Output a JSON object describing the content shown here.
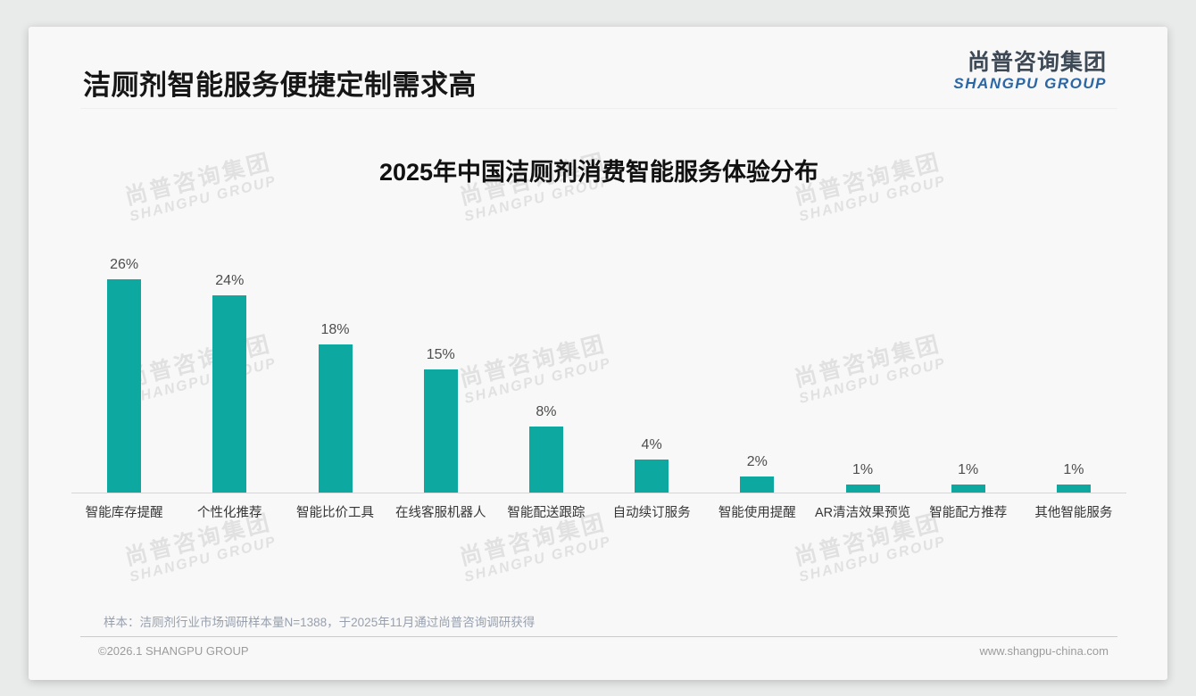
{
  "page": {
    "slide_title": "洁厕剂智能服务便捷定制需求高",
    "logo": {
      "cn": "尚普咨询集团",
      "en": "SHANGPU GROUP"
    },
    "watermark": {
      "cn": "尚普咨询集团",
      "en": "SHANGPU GROUP"
    },
    "footnote": "样本：洁厕剂行业市场调研样本量N=1388，于2025年11月通过尚普咨询调研获得",
    "footer_left": "©2026.1 SHANGPU GROUP",
    "footer_right": "www.shangpu-china.com"
  },
  "chart_data": {
    "type": "bar",
    "title": "2025年中国洁厕剂消费智能服务体验分布",
    "categories": [
      "智能库存提醒",
      "个性化推荐",
      "智能比价工具",
      "在线客服机器人",
      "智能配送跟踪",
      "自动续订服务",
      "智能使用提醒",
      "AR清洁效果预览",
      "智能配方推荐",
      "其他智能服务"
    ],
    "values": [
      26,
      24,
      18,
      15,
      8,
      4,
      2,
      1,
      1,
      1
    ],
    "unit": "%",
    "data_labels": true,
    "xlabel": "",
    "ylabel": "",
    "ylim": [
      0,
      28
    ],
    "grid": false,
    "legend": "none",
    "bar_color": "#0da9a1"
  },
  "colors": {
    "bar": "#0da9a1",
    "card_bg": "#f8f8f8",
    "page_bg": "#e9eaea",
    "logo_blue": "#2b67a4",
    "footnote_gray": "#98a0ae"
  }
}
